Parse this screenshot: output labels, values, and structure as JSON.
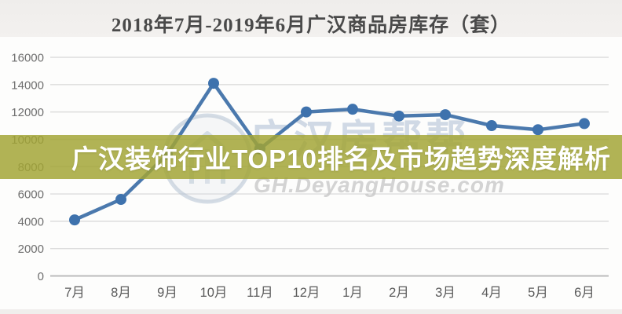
{
  "banner": {
    "text": "广汉装饰行业TOP10排名及市场趋势深度解析",
    "bg_color": "#a2a534",
    "text_color": "#ffffff"
  },
  "watermark": {
    "cn_text": "广汉房帮帮",
    "url_text": "GH.DeyangHouse.com"
  },
  "chart_data": {
    "type": "line",
    "title": "2018年7月-2019年6月广汉商品房库存（套）",
    "categories": [
      "7月",
      "8月",
      "9月",
      "10月",
      "11月",
      "12月",
      "1月",
      "2月",
      "3月",
      "4月",
      "5月",
      "6月"
    ],
    "values": [
      4100,
      5600,
      8900,
      14100,
      9300,
      12000,
      12200,
      11700,
      11800,
      11000,
      10700,
      11150
    ],
    "xlabel": "",
    "ylabel": "",
    "ylim": [
      0,
      16000
    ],
    "ytick_step": 2000,
    "grid": true,
    "legend": "none",
    "line_color": "#4b79ad",
    "marker_color": "#3e72ad",
    "gridline_color": "#dddddd",
    "axisline_color": "#bcbcbc"
  }
}
